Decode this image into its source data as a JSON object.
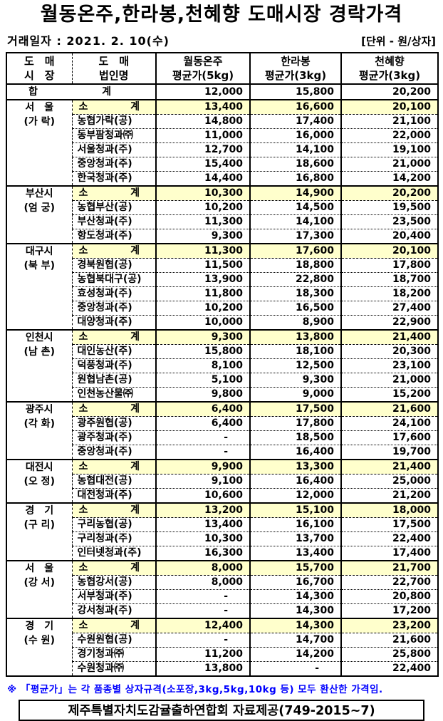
{
  "title": "월동온주,한라봉,천혜향 도매시장 경락가격",
  "meta": {
    "date_label": "거래일자 : 2021. 2. 10(수)",
    "unit_label": "[단위 - 원/상자]"
  },
  "colors": {
    "highlight": "#FFFFCC",
    "footnote_blue": "#0000FF",
    "border": "#000000",
    "background": "#FFFFFF"
  },
  "table": {
    "headers": {
      "market": [
        "도　매",
        "시　장"
      ],
      "corp": [
        "도　매",
        "법인명"
      ],
      "cols": [
        [
          "월동온주",
          "평균가(5kg)"
        ],
        [
          "한라봉",
          "평균가(3kg)"
        ],
        [
          "천혜향",
          "평균가(3kg)"
        ]
      ]
    },
    "labels": {
      "total_left": "합",
      "total_right": "계",
      "subtotal_left": "소",
      "subtotal_right": "계"
    },
    "total_values": [
      "12,000",
      "15,800",
      "20,200"
    ],
    "groups": [
      {
        "market": [
          "서　울",
          "(가 락)"
        ],
        "rows": [
          {
            "subtotal": true,
            "name": "소계",
            "values": [
              "13,400",
              "16,600",
              "20,100"
            ]
          },
          {
            "subtotal": false,
            "name": "농협가락(공)",
            "values": [
              "14,800",
              "17,400",
              "21,100"
            ]
          },
          {
            "subtotal": false,
            "name": "동부팜청과㈜",
            "values": [
              "11,000",
              "16,000",
              "22,000"
            ]
          },
          {
            "subtotal": false,
            "name": "서울청과(주)",
            "values": [
              "12,700",
              "14,100",
              "19,100"
            ]
          },
          {
            "subtotal": false,
            "name": "중앙청과(주)",
            "values": [
              "15,400",
              "18,600",
              "21,000"
            ]
          },
          {
            "subtotal": false,
            "name": "한국청과(주)",
            "values": [
              "14,400",
              "16,800",
              "14,200"
            ]
          }
        ]
      },
      {
        "market": [
          "부산시",
          "(엄 궁)"
        ],
        "rows": [
          {
            "subtotal": true,
            "name": "소계",
            "values": [
              "10,300",
              "14,900",
              "20,200"
            ]
          },
          {
            "subtotal": false,
            "name": "농협부산(공)",
            "values": [
              "10,200",
              "14,500",
              "19,500"
            ]
          },
          {
            "subtotal": false,
            "name": "부산청과(주)",
            "values": [
              "11,300",
              "14,100",
              "23,500"
            ]
          },
          {
            "subtotal": false,
            "name": "항도청과(주)",
            "values": [
              "9,300",
              "17,300",
              "20,400"
            ]
          }
        ]
      },
      {
        "market": [
          "대구시",
          "(북 부)"
        ],
        "rows": [
          {
            "subtotal": true,
            "name": "소계",
            "values": [
              "11,300",
              "17,600",
              "20,100"
            ]
          },
          {
            "subtotal": false,
            "name": "경북원협(공)",
            "values": [
              "11,500",
              "18,800",
              "17,800"
            ]
          },
          {
            "subtotal": false,
            "name": "농협북대구(공)",
            "values": [
              "13,900",
              "22,800",
              "18,700"
            ]
          },
          {
            "subtotal": false,
            "name": "효성청과(주)",
            "values": [
              "11,800",
              "18,300",
              "18,200"
            ]
          },
          {
            "subtotal": false,
            "name": "중앙청과(주)",
            "values": [
              "10,200",
              "16,500",
              "27,400"
            ]
          },
          {
            "subtotal": false,
            "name": "대양청과(주)",
            "values": [
              "10,000",
              "8,900",
              "22,900"
            ]
          }
        ]
      },
      {
        "market": [
          "인천시",
          "(남 촌)"
        ],
        "rows": [
          {
            "subtotal": true,
            "name": "소계",
            "values": [
              "9,300",
              "13,800",
              "21,400"
            ]
          },
          {
            "subtotal": false,
            "name": "대인농산(주)",
            "values": [
              "15,800",
              "18,100",
              "20,300"
            ]
          },
          {
            "subtotal": false,
            "name": "덕풍청과(주)",
            "values": [
              "8,100",
              "12,500",
              "23,100"
            ]
          },
          {
            "subtotal": false,
            "name": "원협남촌(공)",
            "values": [
              "5,100",
              "9,300",
              "21,000"
            ]
          },
          {
            "subtotal": false,
            "name": "인천농산물㈜",
            "values": [
              "9,800",
              "9,000",
              "15,200"
            ]
          }
        ]
      },
      {
        "market": [
          "광주시",
          "(각 화)"
        ],
        "rows": [
          {
            "subtotal": true,
            "name": "소계",
            "values": [
              "6,400",
              "17,500",
              "21,600"
            ]
          },
          {
            "subtotal": false,
            "name": "광주원협(공)",
            "values": [
              "6,400",
              "17,800",
              "24,100"
            ]
          },
          {
            "subtotal": false,
            "name": "광주청과(주)",
            "values": [
              "-",
              "18,500",
              "17,600"
            ]
          },
          {
            "subtotal": false,
            "name": "중앙청과(주)",
            "values": [
              "-",
              "16,400",
              "19,700"
            ]
          }
        ]
      },
      {
        "market": [
          "대전시",
          "(오 정)"
        ],
        "rows": [
          {
            "subtotal": true,
            "name": "소계",
            "values": [
              "9,900",
              "13,300",
              "21,400"
            ]
          },
          {
            "subtotal": false,
            "name": "농협대전(공)",
            "values": [
              "9,100",
              "16,400",
              "25,000"
            ]
          },
          {
            "subtotal": false,
            "name": "대전청과(주)",
            "values": [
              "10,600",
              "12,000",
              "21,200"
            ]
          }
        ]
      },
      {
        "market": [
          "경　기",
          "(구 리)"
        ],
        "rows": [
          {
            "subtotal": true,
            "name": "소계",
            "values": [
              "13,200",
              "15,100",
              "18,000"
            ]
          },
          {
            "subtotal": false,
            "name": "구리농협(공)",
            "values": [
              "13,400",
              "16,100",
              "17,500"
            ]
          },
          {
            "subtotal": false,
            "name": "구리청과(주)",
            "values": [
              "10,300",
              "13,700",
              "22,400"
            ]
          },
          {
            "subtotal": false,
            "name": "인터넷청과(주)",
            "values": [
              "16,300",
              "13,400",
              "17,400"
            ]
          }
        ]
      },
      {
        "market": [
          "서　울",
          "(강 서)"
        ],
        "rows": [
          {
            "subtotal": true,
            "name": "소계",
            "values": [
              "8,000",
              "15,700",
              "21,700"
            ]
          },
          {
            "subtotal": false,
            "name": "농협강서(공)",
            "values": [
              "8,000",
              "16,700",
              "22,700"
            ]
          },
          {
            "subtotal": false,
            "name": "서부청과(주)",
            "values": [
              "-",
              "14,300",
              "20,800"
            ]
          },
          {
            "subtotal": false,
            "name": "강서청과(주)",
            "values": [
              "-",
              "14,300",
              "17,200"
            ]
          }
        ]
      },
      {
        "market": [
          "경　기",
          "(수 원)"
        ],
        "rows": [
          {
            "subtotal": true,
            "name": "소계",
            "values": [
              "12,400",
              "14,300",
              "23,200"
            ]
          },
          {
            "subtotal": false,
            "name": "수원원협(공)",
            "values": [
              "-",
              "14,700",
              "21,600"
            ]
          },
          {
            "subtotal": false,
            "name": "경기청과㈜",
            "values": [
              "11,200",
              "14,200",
              "25,800"
            ]
          },
          {
            "subtotal": false,
            "name": "수원청과㈜",
            "values": [
              "13,800",
              "-",
              "22,400"
            ]
          }
        ]
      }
    ]
  },
  "footnote": "※ 「평균가」는 각 품종별 상자규격(소포장,3kg,5kg,10kg 등) 모두 환산한 가격임.",
  "source_box": "제주특별자치도감귤출하연합회 자료제공(749-2015~7)"
}
